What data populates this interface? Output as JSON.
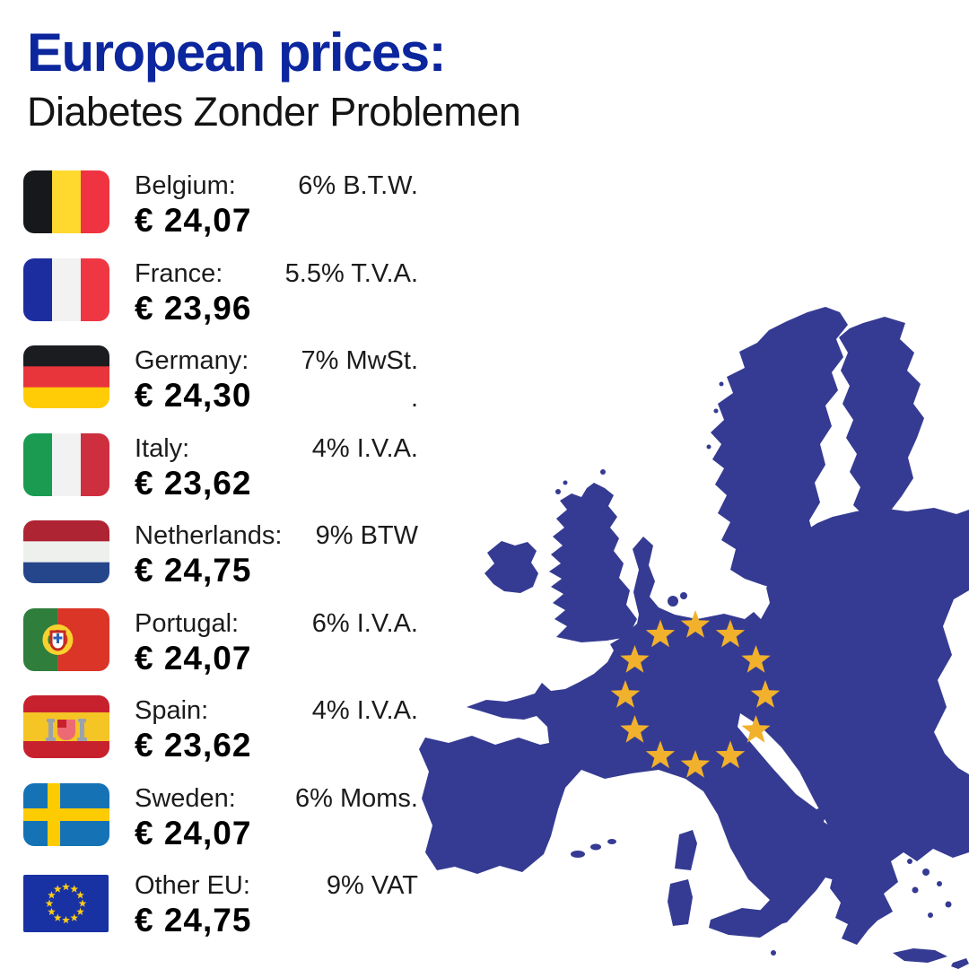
{
  "header": {
    "title": "European prices:",
    "subtitle": "Diabetes Zonder Problemen"
  },
  "rows": [
    {
      "country": "Belgium:",
      "price": "€ 24,07",
      "tax": "6% B.T.W.",
      "flag": "belgium"
    },
    {
      "country": "France:",
      "price": "€ 23,96",
      "tax": "5.5% T.V.A.",
      "flag": "france"
    },
    {
      "country": "Germany:",
      "price": "€ 24,30",
      "tax": "7% MwSt.",
      "tax2": ".",
      "flag": "germany"
    },
    {
      "country": "Italy:",
      "price": "€ 23,62",
      "tax": "4% I.V.A.",
      "flag": "italy"
    },
    {
      "country": "Netherlands:",
      "price": "€ 24,75",
      "tax": "9% BTW",
      "flag": "netherlands"
    },
    {
      "country": "Portugal:",
      "price": "€ 24,07",
      "tax": "6% I.V.A.",
      "flag": "portugal"
    },
    {
      "country": "Spain:",
      "price": "€ 23,62",
      "tax": "4% I.V.A.",
      "flag": "spain"
    },
    {
      "country": "Sweden:",
      "price": "€ 24,07",
      "tax": "6% Moms.",
      "flag": "sweden"
    },
    {
      "country": "Other EU:",
      "price": "€ 24,75",
      "tax": "9% VAT",
      "flag": "eu"
    }
  ],
  "colors": {
    "title_blue": "#0C269E",
    "map_blue": "#353B92",
    "star_gold": "#F2B12C",
    "text_dark": "#1B1B1B",
    "background": "#FFFFFF"
  },
  "map": {
    "name": "europe-map",
    "stars_count": 12
  }
}
